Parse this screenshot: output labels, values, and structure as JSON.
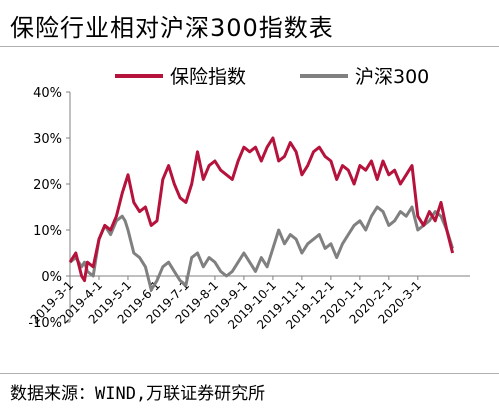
{
  "title": "保险行业相对沪深300指数表",
  "source": "数据来源：WIND,万联证券研究所",
  "chart_data": {
    "type": "line",
    "ylim": [
      -10,
      40
    ],
    "yticks": [
      "-10%",
      "0%",
      "10%",
      "20%",
      "30%",
      "40%"
    ],
    "ytick_values": [
      -10,
      0,
      10,
      20,
      30,
      40
    ],
    "xticks": [
      "2019-3-1",
      "2019-4-1",
      "2019-5-1",
      "2019-6-1",
      "2019-7-1",
      "2019-8-1",
      "2019-9-1",
      "2019-10-1",
      "2019-11-1",
      "2019-12-1",
      "2020-1-1",
      "2020-2-1",
      "2020-3-1"
    ],
    "xlim": [
      0,
      13.8
    ],
    "grid": false,
    "legend_position": "top",
    "series": [
      {
        "name": "保险指数",
        "color": "#b5123c",
        "x": [
          0,
          0.2,
          0.4,
          0.5,
          0.6,
          0.8,
          1.0,
          1.2,
          1.4,
          1.6,
          1.8,
          1.9,
          2.0,
          2.2,
          2.4,
          2.6,
          2.8,
          3.0,
          3.2,
          3.4,
          3.6,
          3.8,
          4.0,
          4.2,
          4.4,
          4.6,
          4.8,
          5.0,
          5.2,
          5.4,
          5.6,
          5.8,
          6.0,
          6.2,
          6.4,
          6.6,
          6.8,
          7.0,
          7.2,
          7.4,
          7.6,
          7.8,
          8.0,
          8.2,
          8.4,
          8.6,
          8.8,
          9.0,
          9.2,
          9.4,
          9.6,
          9.8,
          10.0,
          10.2,
          10.4,
          10.6,
          10.8,
          11.0,
          11.2,
          11.4,
          11.6,
          11.8,
          12.0,
          12.2,
          12.4,
          12.6,
          12.8,
          13.0,
          13.2
        ],
        "values": [
          3,
          5,
          0,
          -1,
          3,
          2,
          8,
          11,
          10,
          13,
          18,
          20,
          22,
          16,
          14,
          15,
          11,
          12,
          21,
          24,
          20,
          17,
          16,
          20,
          27,
          21,
          24,
          25,
          23,
          22,
          21,
          25,
          28,
          27,
          28,
          25,
          28,
          30,
          25,
          26,
          29,
          27,
          22,
          24,
          27,
          28,
          26,
          25,
          21,
          24,
          23,
          20,
          24,
          23,
          25,
          21,
          25,
          22,
          23,
          20,
          22,
          24,
          13,
          11,
          14,
          12,
          16,
          10,
          5
        ]
      },
      {
        "name": "沪深300",
        "color": "#808080",
        "x": [
          0,
          0.2,
          0.4,
          0.5,
          0.6,
          0.8,
          1.0,
          1.2,
          1.4,
          1.6,
          1.8,
          1.9,
          2.0,
          2.2,
          2.4,
          2.6,
          2.8,
          3.0,
          3.2,
          3.4,
          3.6,
          3.8,
          4.0,
          4.2,
          4.4,
          4.6,
          4.8,
          5.0,
          5.2,
          5.4,
          5.6,
          5.8,
          6.0,
          6.2,
          6.4,
          6.6,
          6.8,
          7.0,
          7.2,
          7.4,
          7.6,
          7.8,
          8.0,
          8.2,
          8.4,
          8.6,
          8.8,
          9.0,
          9.2,
          9.4,
          9.6,
          9.8,
          10.0,
          10.2,
          10.4,
          10.6,
          10.8,
          11.0,
          11.2,
          11.4,
          11.6,
          11.8,
          12.0,
          12.2,
          12.4,
          12.6,
          12.8,
          13.0,
          13.2
        ],
        "values": [
          3,
          4,
          2,
          3,
          1,
          0,
          8,
          11,
          9,
          12,
          13,
          12,
          10,
          5,
          4,
          2,
          -3,
          -1,
          2,
          3,
          1,
          -1,
          -2,
          4,
          5,
          2,
          4,
          3,
          1,
          0,
          1,
          3,
          5,
          3,
          1,
          4,
          2,
          6,
          10,
          7,
          9,
          8,
          5,
          7,
          8,
          9,
          6,
          7,
          4,
          7,
          9,
          11,
          12,
          10,
          13,
          15,
          14,
          11,
          12,
          14,
          13,
          15,
          10,
          11,
          12,
          14,
          13,
          10,
          6
        ]
      }
    ]
  }
}
